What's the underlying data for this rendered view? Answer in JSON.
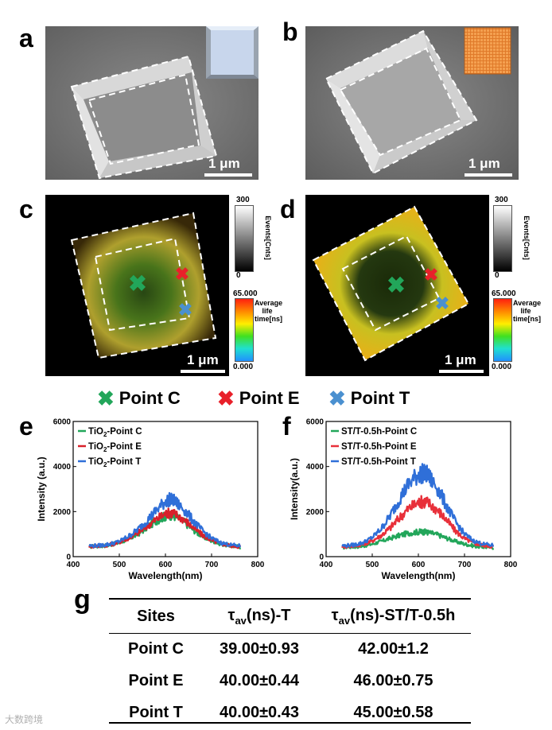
{
  "panel_labels": {
    "a": "a",
    "b": "b",
    "c": "c",
    "d": "d",
    "e": "e",
    "f": "f",
    "g": "g"
  },
  "scale_bars": {
    "a": "1 μm",
    "b": "1 μm",
    "c": "1 μm",
    "d": "1 μm"
  },
  "colorbars": {
    "events": {
      "max": "300",
      "min": "0",
      "title": "Events[Cnts]"
    },
    "lifetime": {
      "max": "65.000",
      "min": "0.000",
      "title": "Average life time[ns]"
    },
    "colors": {
      "events_top": "#ffffff",
      "events_bottom": "#000000"
    }
  },
  "legend": [
    {
      "label": "Point C",
      "color": "#22a65a"
    },
    {
      "label": "Point E",
      "color": "#e8202a"
    },
    {
      "label": "Point T",
      "color": "#4a90d0"
    }
  ],
  "chart_data": [
    {
      "type": "line",
      "panel": "e",
      "xlabel": "Wavelength(nm)",
      "ylabel": "Intensity (a.u.)",
      "xlim": [
        400,
        800
      ],
      "ylim": [
        0,
        6000
      ],
      "xticks": [
        "400",
        "500",
        "600",
        "700",
        "800"
      ],
      "yticks": [
        "0",
        "2000",
        "4000",
        "6000"
      ],
      "legend_position": "top-left",
      "series": [
        {
          "name": "TiO2-Point C",
          "name_main": "TiO",
          "name_sub": "2",
          "name_rest": "-Point C",
          "color": "#22a65a",
          "x": [
            435,
            460,
            480,
            500,
            520,
            540,
            560,
            580,
            600,
            610,
            620,
            640,
            660,
            680,
            700,
            720,
            740,
            765
          ],
          "y": [
            450,
            470,
            520,
            620,
            780,
            1000,
            1300,
            1600,
            1800,
            1850,
            1800,
            1550,
            1200,
            900,
            700,
            560,
            480,
            430
          ]
        },
        {
          "name": "TiO2-Point E",
          "name_main": "TiO",
          "name_sub": "2",
          "name_rest": "-Point E",
          "color": "#d8202a",
          "x": [
            435,
            460,
            480,
            500,
            520,
            540,
            560,
            580,
            600,
            610,
            620,
            640,
            660,
            680,
            700,
            720,
            740,
            765
          ],
          "y": [
            460,
            480,
            530,
            640,
            820,
            1050,
            1350,
            1650,
            1900,
            1950,
            1900,
            1650,
            1300,
            960,
            720,
            580,
            490,
            440
          ]
        },
        {
          "name": "TiO2-Point T",
          "name_main": "TiO",
          "name_sub": "2",
          "name_rest": "-Point T",
          "color": "#2f6fd8",
          "x": [
            435,
            460,
            480,
            500,
            520,
            540,
            560,
            580,
            600,
            610,
            620,
            640,
            660,
            680,
            700,
            720,
            740,
            765
          ],
          "y": [
            480,
            500,
            560,
            680,
            900,
            1200,
            1600,
            2050,
            2450,
            2550,
            2450,
            2100,
            1600,
            1150,
            820,
            620,
            520,
            470
          ]
        }
      ]
    },
    {
      "type": "line",
      "panel": "f",
      "xlabel": "Wavelength(nm)",
      "ylabel": "Intensity(a.u.)",
      "xlim": [
        400,
        800
      ],
      "ylim": [
        0,
        6000
      ],
      "xticks": [
        "400",
        "500",
        "600",
        "700",
        "800"
      ],
      "yticks": [
        "0",
        "2000",
        "4000",
        "6000"
      ],
      "legend_position": "top-left",
      "series": [
        {
          "name": "ST/T-0.5h-Point C",
          "color": "#22a65a",
          "x": [
            435,
            460,
            480,
            500,
            520,
            540,
            560,
            580,
            600,
            610,
            620,
            640,
            660,
            680,
            700,
            720,
            740,
            765
          ],
          "y": [
            420,
            440,
            480,
            560,
            680,
            820,
            950,
            1050,
            1100,
            1100,
            1080,
            980,
            830,
            680,
            560,
            480,
            430,
            410
          ]
        },
        {
          "name": "ST/T-0.5h-Point E",
          "color": "#e8303a",
          "x": [
            435,
            460,
            480,
            500,
            520,
            540,
            560,
            580,
            600,
            610,
            620,
            640,
            660,
            680,
            700,
            720,
            740,
            765
          ],
          "y": [
            450,
            480,
            550,
            700,
            950,
            1300,
            1750,
            2150,
            2400,
            2450,
            2400,
            2100,
            1650,
            1150,
            800,
            600,
            500,
            450
          ]
        },
        {
          "name": "ST/T-0.5h-Point T",
          "color": "#2f6fd8",
          "x": [
            435,
            460,
            480,
            500,
            520,
            540,
            560,
            580,
            600,
            610,
            620,
            640,
            660,
            680,
            700,
            720,
            740,
            765
          ],
          "y": [
            480,
            520,
            620,
            850,
            1250,
            1850,
            2600,
            3250,
            3650,
            3700,
            3600,
            3100,
            2300,
            1550,
            1000,
            700,
            560,
            490
          ]
        }
      ]
    }
  ],
  "table": {
    "headers": [
      {
        "main": "Sites",
        "sub": "",
        "rest": ""
      },
      {
        "main": "τ",
        "sub": "av",
        "rest": "(ns)-T"
      },
      {
        "main": "τ",
        "sub": "av",
        "rest": "(ns)-ST/T-0.5h"
      }
    ],
    "rows": [
      [
        "Point C",
        "39.00±0.93",
        "42.00±1.2"
      ],
      [
        "Point E",
        "40.00±0.44",
        "46.00±0.75"
      ],
      [
        "Point T",
        "40.00±0.43",
        "45.00±0.58"
      ]
    ]
  },
  "watermark": "大数跨境"
}
